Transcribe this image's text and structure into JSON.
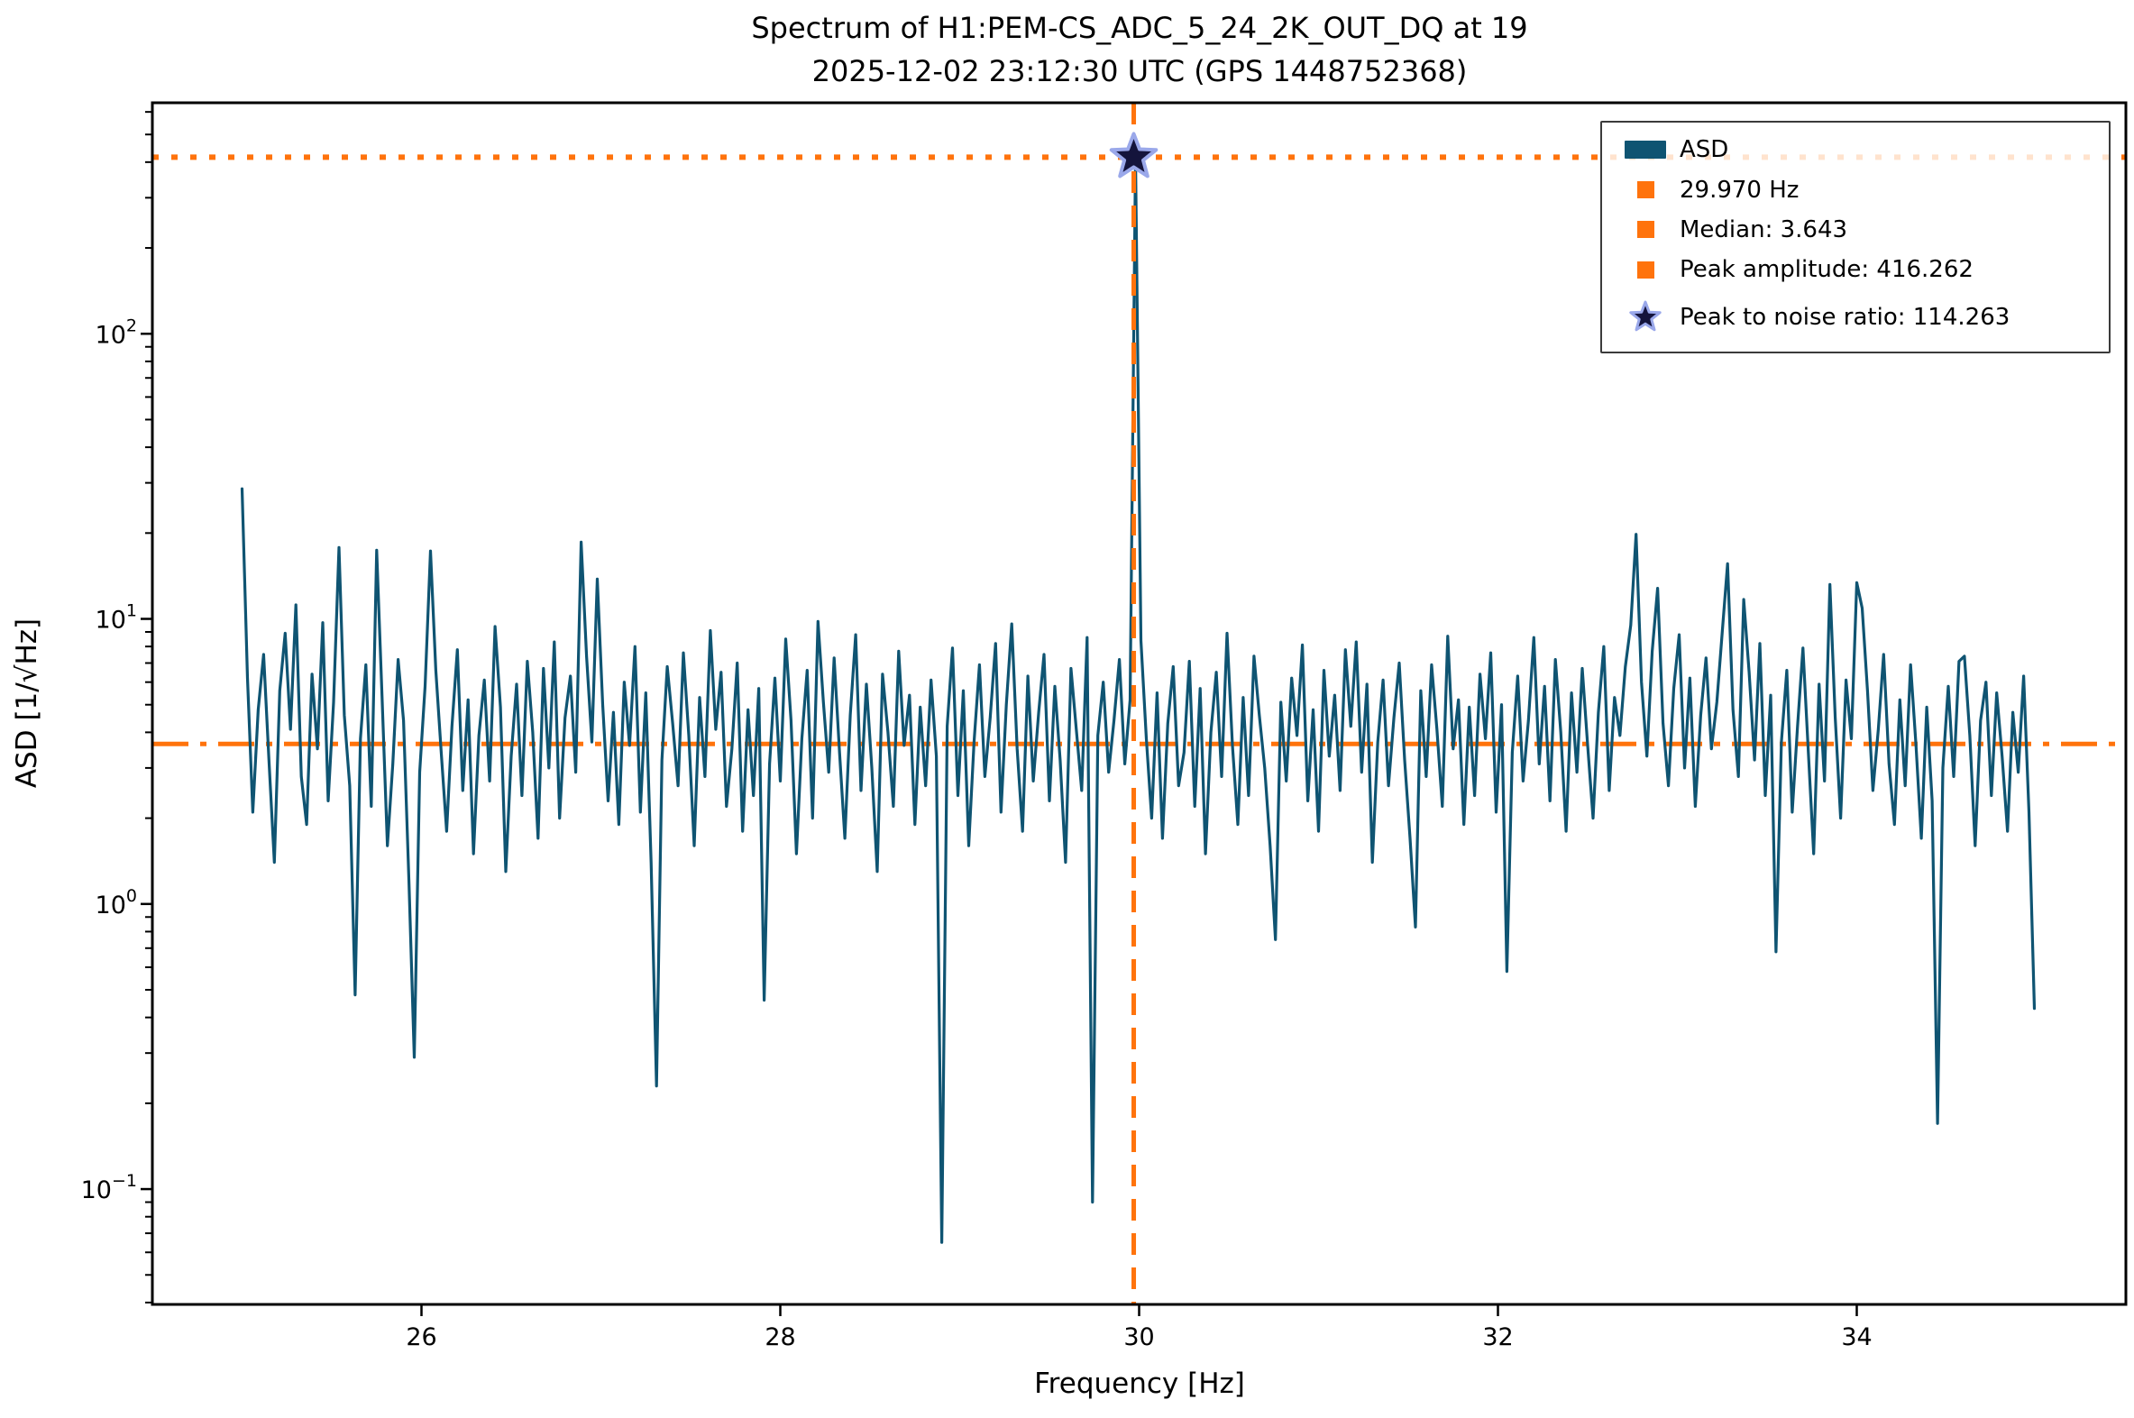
{
  "title": {
    "line1": "Spectrum of H1:PEM-CS_ADC_5_24_2K_OUT_DQ at 19",
    "line2": "2025-12-02 23:12:30 UTC (GPS 1448752368)"
  },
  "colors": {
    "series": "#0f5472",
    "accent": "#ff730c",
    "star_face": "#14143c",
    "star_edge": "#9aa8ea",
    "legend_border": "#3b3b3b",
    "text": "#000000"
  },
  "legend": {
    "items": [
      {
        "label": "ASD",
        "marker": "line"
      },
      {
        "label": "29.970 Hz",
        "marker": "square"
      },
      {
        "label": "Median: 3.643",
        "marker": "square"
      },
      {
        "label": "Peak amplitude: 416.262",
        "marker": "square"
      },
      {
        "label": "Peak to noise ratio: 114.263",
        "marker": "star"
      }
    ]
  },
  "chart_data": {
    "type": "line",
    "series_name": "ASD",
    "title": "Spectrum of H1:PEM-CS_ADC_5_24_2K_OUT_DQ at 19 2025-12-02 23:12:30 UTC (GPS 1448752368)",
    "xlabel": "Frequency [Hz]",
    "ylabel": "ASD [1/√Hz]",
    "log_y": true,
    "xlim": [
      24.5,
      35.5
    ],
    "ylim": [
      0.0394,
      646
    ],
    "x_ticks": [
      26,
      28,
      30,
      32,
      34
    ],
    "y_tick_exponents": [
      -1,
      0,
      1,
      2
    ],
    "grid": false,
    "legend_position": "upper right",
    "annotations": {
      "peak_frequency_hz": 29.97,
      "median": 3.643,
      "peak_amplitude": 416.262,
      "peak_to_noise_ratio": 114.263,
      "vline_x": 29.97,
      "median_hline_y": 3.643,
      "peak_hline_y": 416.262,
      "star_marker": {
        "x": 29.97,
        "y": 416.262
      }
    },
    "x_start": 25.0,
    "x_step": 0.03,
    "values": [
      28.6,
      6.2,
      2.1,
      4.8,
      7.5,
      3.2,
      1.4,
      5.6,
      8.9,
      4.1,
      11.2,
      2.8,
      1.9,
      6.4,
      3.5,
      9.7,
      2.3,
      5.1,
      17.8,
      4.6,
      2.6,
      0.48,
      3.8,
      6.9,
      2.2,
      17.4,
      5.4,
      1.6,
      3.1,
      7.2,
      4.4,
      1.2,
      0.29,
      2.9,
      5.8,
      17.3,
      6.6,
      3.4,
      1.8,
      4.2,
      7.8,
      2.5,
      5.2,
      1.5,
      3.9,
      6.1,
      2.7,
      9.4,
      4.9,
      1.3,
      3.3,
      5.9,
      2.4,
      7.1,
      4.0,
      1.7,
      6.7,
      3.0,
      8.3,
      2.0,
      4.5,
      6.3,
      2.9,
      18.6,
      7.4,
      3.7,
      13.8,
      5.0,
      2.3,
      4.7,
      1.9,
      6.0,
      3.6,
      8.0,
      2.1,
      5.5,
      1.4,
      0.23,
      3.2,
      6.8,
      4.3,
      2.6,
      7.6,
      3.9,
      1.6,
      5.3,
      2.8,
      9.1,
      4.1,
      6.5,
      2.2,
      3.5,
      7.0,
      1.8,
      4.8,
      2.4,
      5.7,
      0.46,
      3.1,
      6.2,
      2.7,
      8.5,
      4.4,
      1.5,
      3.8,
      6.6,
      2.0,
      9.8,
      5.1,
      2.9,
      7.3,
      3.4,
      1.7,
      4.6,
      8.8,
      2.5,
      5.9,
      3.0,
      1.3,
      6.4,
      4.0,
      2.2,
      7.7,
      3.6,
      5.4,
      1.9,
      4.9,
      2.6,
      6.1,
      3.3,
      0.065,
      4.2,
      7.9,
      2.4,
      5.6,
      1.6,
      3.7,
      6.9,
      2.8,
      4.5,
      8.2,
      2.1,
      5.0,
      9.6,
      3.5,
      1.8,
      6.3,
      2.7,
      4.7,
      7.5,
      2.3,
      5.8,
      3.2,
      1.4,
      6.7,
      4.1,
      2.5,
      8.6,
      0.09,
      3.9,
      6.0,
      2.9,
      4.4,
      7.2,
      3.1,
      5.2,
      416.262,
      8.4,
      3.8,
      2.0,
      5.5,
      1.7,
      4.3,
      6.8,
      2.6,
      3.4,
      7.1,
      2.2,
      5.7,
      1.5,
      4.0,
      6.5,
      2.8,
      8.9,
      3.6,
      1.9,
      5.3,
      2.4,
      7.4,
      4.6,
      3.0,
      1.6,
      0.75,
      5.1,
      2.7,
      6.2,
      3.9,
      8.1,
      2.3,
      4.8,
      1.8,
      6.6,
      3.3,
      5.4,
      2.5,
      7.8,
      4.2,
      8.3,
      2.9,
      5.9,
      1.4,
      3.7,
      6.1,
      2.6,
      4.5,
      7.0,
      3.2,
      1.7,
      0.83,
      5.6,
      2.8,
      6.9,
      4.1,
      2.2,
      8.7,
      3.5,
      5.2,
      1.9,
      4.9,
      2.4,
      6.4,
      3.8,
      7.6,
      2.1,
      5.0,
      0.58,
      3.4,
      6.3,
      2.7,
      4.4,
      8.6,
      3.1,
      5.8,
      2.3,
      7.2,
      4.0,
      1.8,
      5.5,
      2.9,
      6.7,
      3.6,
      2.0,
      4.7,
      8.0,
      2.5,
      5.3,
      3.9,
      6.8,
      9.5,
      19.8,
      6.0,
      3.3,
      7.7,
      12.8,
      4.3,
      2.6,
      5.7,
      8.8,
      3.0,
      6.2,
      2.2,
      4.6,
      7.3,
      3.5,
      5.1,
      9.0,
      15.6,
      4.8,
      2.8,
      11.7,
      6.5,
      3.2,
      8.2,
      2.4,
      5.4,
      0.68,
      3.7,
      6.6,
      2.1,
      4.2,
      7.9,
      3.4,
      1.5,
      5.9,
      2.7,
      13.2,
      4.5,
      2.0,
      6.1,
      3.8,
      13.4,
      10.9,
      5.6,
      2.5,
      4.1,
      7.5,
      3.1,
      1.9,
      5.2,
      2.6,
      6.9,
      3.6,
      1.7,
      4.9,
      2.3,
      0.17,
      3.0,
      5.8,
      2.8,
      7.1,
      7.4,
      3.9,
      1.6,
      4.4,
      6.0,
      2.4,
      5.5,
      3.3,
      1.8,
      4.7,
      2.9,
      6.3,
      2.1,
      0.43
    ]
  }
}
